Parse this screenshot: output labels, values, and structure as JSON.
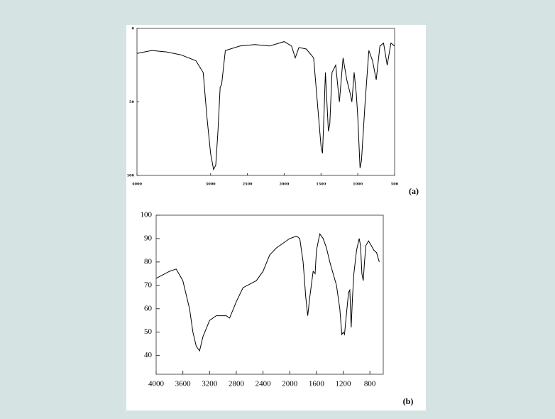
{
  "chart_data": [
    {
      "type": "line",
      "panel_label": "(a)",
      "color": "#000000",
      "xlim": [
        4000,
        500
      ],
      "ylim": [
        100,
        0
      ],
      "xticks": [
        4000,
        3000,
        2500,
        2000,
        1500,
        1000,
        500
      ],
      "yticks": [
        0,
        50,
        100
      ],
      "x": [
        4000,
        3800,
        3600,
        3400,
        3200,
        3100,
        3050,
        3000,
        2960,
        2930,
        2900,
        2870,
        2850,
        2800,
        2600,
        2400,
        2200,
        2000,
        1900,
        1850,
        1800,
        1700,
        1600,
        1550,
        1500,
        1480,
        1460,
        1440,
        1400,
        1380,
        1350,
        1300,
        1250,
        1200,
        1150,
        1100,
        1080,
        1050,
        1020,
        1000,
        970,
        950,
        900,
        850,
        800,
        750,
        700,
        650,
        600,
        550,
        500
      ],
      "series": [
        {
          "values": [
            17,
            15,
            16,
            18,
            22,
            30,
            60,
            85,
            96,
            93,
            70,
            40,
            38,
            15,
            12,
            11,
            12,
            9,
            12,
            20,
            13,
            14,
            20,
            50,
            80,
            85,
            60,
            30,
            70,
            65,
            30,
            25,
            50,
            20,
            35,
            45,
            50,
            30,
            45,
            60,
            95,
            90,
            50,
            15,
            22,
            35,
            12,
            10,
            25,
            10,
            12
          ]
        }
      ]
    },
    {
      "type": "line",
      "panel_label": "(b)",
      "color": "#000000",
      "xlim": [
        4000,
        600
      ],
      "ylim": [
        32,
        100
      ],
      "xticks": [
        4000,
        3600,
        3200,
        2800,
        2400,
        2000,
        1600,
        1200,
        800
      ],
      "yticks": [
        40,
        50,
        60,
        70,
        80,
        90,
        100
      ],
      "x": [
        4000,
        3800,
        3700,
        3600,
        3500,
        3450,
        3400,
        3350,
        3300,
        3200,
        3100,
        2950,
        2900,
        2800,
        2700,
        2600,
        2500,
        2400,
        2300,
        2200,
        2100,
        2000,
        1900,
        1850,
        1800,
        1760,
        1730,
        1700,
        1650,
        1620,
        1600,
        1550,
        1500,
        1450,
        1400,
        1300,
        1250,
        1220,
        1200,
        1180,
        1150,
        1120,
        1100,
        1080,
        1060,
        1040,
        1000,
        960,
        940,
        920,
        900,
        880,
        860,
        820,
        780,
        740,
        700,
        660
      ],
      "series": [
        {
          "values": [
            73,
            76,
            77,
            72,
            60,
            50,
            44,
            42,
            48,
            55,
            57,
            57,
            56,
            63,
            69,
            70.5,
            72,
            76,
            83,
            86,
            88,
            90,
            91,
            90,
            80,
            65,
            57,
            65,
            76,
            75,
            85,
            92,
            90,
            86,
            80,
            70,
            60,
            49,
            50,
            49,
            58,
            67,
            68,
            52,
            65,
            75,
            85,
            90,
            87,
            75,
            72,
            80,
            87,
            89,
            87,
            85,
            84,
            80
          ]
        }
      ]
    }
  ]
}
